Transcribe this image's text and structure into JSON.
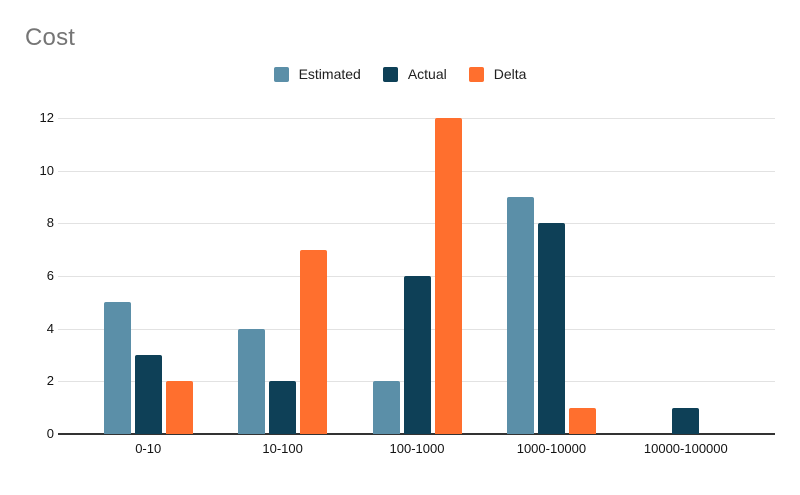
{
  "title": "Cost",
  "colors": {
    "background": "#ffffff",
    "title_text": "#757575",
    "label_text": "#212121",
    "tick_text": "#131313",
    "gridline": "#e2e2e2",
    "axis_line": "#333333",
    "estimated": "#5B8FA8",
    "actual": "#0E4057",
    "delta": "#FF6F2E"
  },
  "legend": {
    "items": [
      {
        "label": "Estimated",
        "color": "#5B8FA8"
      },
      {
        "label": "Actual",
        "color": "#0E4057"
      },
      {
        "label": "Delta",
        "color": "#FF6F2E"
      }
    ]
  },
  "chart_data": {
    "type": "bar",
    "title": "Cost",
    "categories": [
      "0-10",
      "10-100",
      "100-1000",
      "1000-10000",
      "10000-100000"
    ],
    "series": [
      {
        "name": "Estimated",
        "color": "#5B8FA8",
        "values": [
          5,
          4,
          2,
          9,
          0
        ]
      },
      {
        "name": "Actual",
        "color": "#0E4057",
        "values": [
          3,
          2,
          6,
          8,
          1
        ]
      },
      {
        "name": "Delta",
        "color": "#FF6F2E",
        "values": [
          2,
          7,
          12,
          1,
          0
        ]
      }
    ],
    "xlabel": "",
    "ylabel": "",
    "ylim": [
      0,
      12
    ],
    "yticks": [
      0,
      2,
      4,
      6,
      8,
      10,
      12
    ],
    "grid": true,
    "legend_position": "top-center"
  }
}
